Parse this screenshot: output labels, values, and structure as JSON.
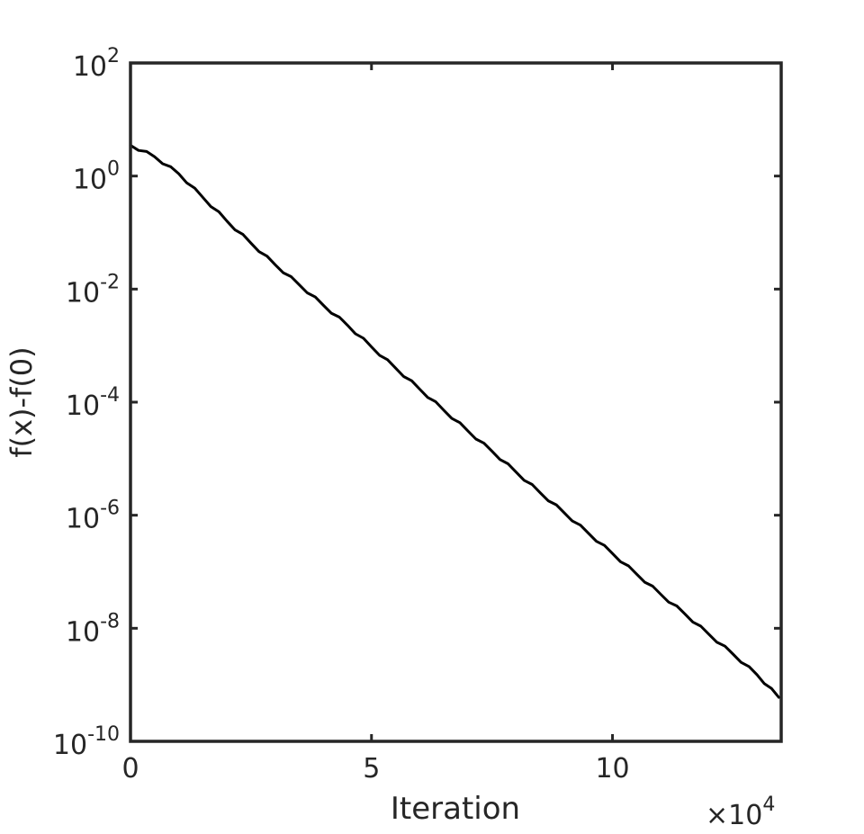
{
  "chart_data": {
    "type": "line",
    "title": "",
    "xlabel": "Iteration",
    "ylabel": "f(x)-f(0)",
    "x_multiplier": "×10",
    "x_multiplier_exp": "4",
    "xscale": "linear",
    "yscale": "log",
    "xlim": [
      0,
      13.5
    ],
    "ylim": [
      1e-10,
      100
    ],
    "grid": false,
    "x_ticks": [
      {
        "value": 0,
        "label": "0"
      },
      {
        "value": 5,
        "label": "5"
      },
      {
        "value": 10,
        "label": "10"
      }
    ],
    "y_ticks": [
      {
        "value": 100.0,
        "base": "10",
        "exp": "2"
      },
      {
        "value": 1.0,
        "base": "10",
        "exp": "0"
      },
      {
        "value": 0.01,
        "base": "10",
        "exp": "-2"
      },
      {
        "value": 0.0001,
        "base": "10",
        "exp": "-4"
      },
      {
        "value": 1e-06,
        "base": "10",
        "exp": "-6"
      },
      {
        "value": 1e-08,
        "base": "10",
        "exp": "-8"
      },
      {
        "value": 1e-10,
        "base": "10",
        "exp": "-10"
      }
    ],
    "series": [
      {
        "color": "#000000",
        "x": [
          0,
          0.5,
          1,
          1.5,
          2,
          2.5,
          3,
          3.5,
          4,
          4.5,
          5,
          5.5,
          6,
          6.5,
          7,
          7.5,
          8,
          8.5,
          9,
          9.5,
          10,
          10.5,
          11,
          11.5,
          12,
          12.5,
          13,
          13.45
        ],
        "y": [
          3.5,
          2.2,
          1.1,
          0.42,
          0.16,
          0.065,
          0.027,
          0.012,
          0.0052,
          0.0023,
          0.00095,
          0.0004,
          0.00017,
          7.2e-05,
          3.1e-05,
          1.35e-05,
          5.8e-06,
          2.5e-06,
          1.1e-06,
          4.8e-07,
          2.1e-07,
          9.1e-08,
          4e-08,
          1.8e-08,
          7.8e-09,
          3.5e-09,
          1.5e-09,
          6e-10
        ]
      }
    ]
  }
}
